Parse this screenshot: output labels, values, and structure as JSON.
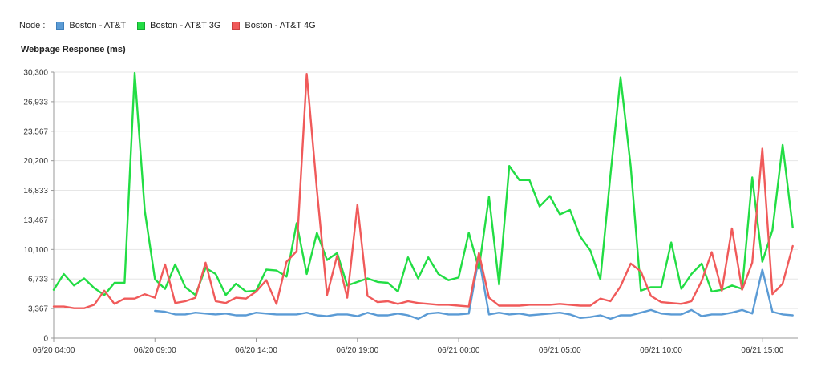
{
  "legend": {
    "label": "Node :",
    "items": [
      {
        "name": "Boston - AT&T",
        "color": "#5b9bd5"
      },
      {
        "name": "Boston - AT&T 3G",
        "color": "#22dd44"
      },
      {
        "name": "Boston - AT&T 4G",
        "color": "#f05a5a"
      }
    ]
  },
  "chart_data": {
    "type": "line",
    "title": "",
    "ylabel": "Webpage Response (ms)",
    "xlabel": "",
    "ylim": [
      0,
      30300
    ],
    "yticks": [
      "0",
      "3,367",
      "6,733",
      "10,100",
      "13,467",
      "16,833",
      "20,200",
      "23,567",
      "26,933",
      "30,300"
    ],
    "xticks": [
      {
        "label": "06/20 04:00",
        "x": 0
      },
      {
        "label": "06/20 09:00",
        "x": 5
      },
      {
        "label": "06/20 14:00",
        "x": 10
      },
      {
        "label": "06/20 19:00",
        "x": 15
      },
      {
        "label": "06/21 00:00",
        "x": 20
      },
      {
        "label": "06/21 05:00",
        "x": 25
      },
      {
        "label": "06/21 10:00",
        "x": 30
      },
      {
        "label": "06/21 15:00",
        "x": 35
      }
    ],
    "grid": "horizontal",
    "legend_position": "top-left",
    "series": [
      {
        "name": "Boston - AT&T",
        "color": "#5b9bd5",
        "points": [
          [
            5,
            3100
          ],
          [
            5.5,
            3000
          ],
          [
            6,
            2700
          ],
          [
            6.5,
            2700
          ],
          [
            7,
            2900
          ],
          [
            7.5,
            2800
          ],
          [
            8,
            2700
          ],
          [
            8.5,
            2800
          ],
          [
            9,
            2600
          ],
          [
            9.5,
            2600
          ],
          [
            10,
            2900
          ],
          [
            10.5,
            2800
          ],
          [
            11,
            2700
          ],
          [
            11.5,
            2700
          ],
          [
            12,
            2700
          ],
          [
            12.5,
            2900
          ],
          [
            13,
            2600
          ],
          [
            13.5,
            2500
          ],
          [
            14,
            2700
          ],
          [
            14.5,
            2700
          ],
          [
            15,
            2500
          ],
          [
            15.5,
            2900
          ],
          [
            16,
            2600
          ],
          [
            16.5,
            2600
          ],
          [
            17,
            2800
          ],
          [
            17.5,
            2600
          ],
          [
            18,
            2200
          ],
          [
            18.5,
            2800
          ],
          [
            19,
            2900
          ],
          [
            19.5,
            2700
          ],
          [
            20,
            2700
          ],
          [
            20.5,
            2800
          ],
          [
            21,
            9200
          ],
          [
            21.5,
            2700
          ],
          [
            22,
            2900
          ],
          [
            22.5,
            2700
          ],
          [
            23,
            2800
          ],
          [
            23.5,
            2600
          ],
          [
            24,
            2700
          ],
          [
            24.5,
            2800
          ],
          [
            25,
            2900
          ],
          [
            25.5,
            2700
          ],
          [
            26,
            2300
          ],
          [
            26.5,
            2400
          ],
          [
            27,
            2600
          ],
          [
            27.5,
            2200
          ],
          [
            28,
            2600
          ],
          [
            28.5,
            2600
          ],
          [
            29,
            2900
          ],
          [
            29.5,
            3200
          ],
          [
            30,
            2800
          ],
          [
            30.5,
            2700
          ],
          [
            31,
            2700
          ],
          [
            31.5,
            3200
          ],
          [
            32,
            2500
          ],
          [
            32.5,
            2700
          ],
          [
            33,
            2700
          ],
          [
            33.5,
            2900
          ],
          [
            34,
            3200
          ],
          [
            34.5,
            2800
          ],
          [
            35,
            7800
          ],
          [
            35.5,
            3000
          ],
          [
            36,
            2700
          ],
          [
            36.5,
            2600
          ]
        ]
      },
      {
        "name": "Boston - AT&T 3G",
        "color": "#22dd44",
        "points": [
          [
            0,
            5500
          ],
          [
            0.5,
            7300
          ],
          [
            1,
            6000
          ],
          [
            1.5,
            6800
          ],
          [
            2,
            5700
          ],
          [
            2.5,
            4900
          ],
          [
            3,
            6300
          ],
          [
            3.5,
            6300
          ],
          [
            4,
            30200
          ],
          [
            4.5,
            14500
          ],
          [
            5,
            6700
          ],
          [
            5.5,
            5600
          ],
          [
            6,
            8400
          ],
          [
            6.5,
            5800
          ],
          [
            7,
            4900
          ],
          [
            7.5,
            8000
          ],
          [
            8,
            7300
          ],
          [
            8.5,
            4900
          ],
          [
            9,
            6200
          ],
          [
            9.5,
            5300
          ],
          [
            10,
            5400
          ],
          [
            10.5,
            7800
          ],
          [
            11,
            7700
          ],
          [
            11.5,
            7000
          ],
          [
            12,
            13100
          ],
          [
            12.5,
            7300
          ],
          [
            13,
            12000
          ],
          [
            13.5,
            8900
          ],
          [
            14,
            9700
          ],
          [
            14.5,
            6000
          ],
          [
            15,
            6400
          ],
          [
            15.5,
            6800
          ],
          [
            16,
            6400
          ],
          [
            16.5,
            6300
          ],
          [
            17,
            5300
          ],
          [
            17.5,
            9200
          ],
          [
            18,
            6800
          ],
          [
            18.5,
            9200
          ],
          [
            19,
            7300
          ],
          [
            19.5,
            6600
          ],
          [
            20,
            6900
          ],
          [
            20.5,
            12000
          ],
          [
            21,
            7900
          ],
          [
            21.5,
            16100
          ],
          [
            22,
            6100
          ],
          [
            22.5,
            19600
          ],
          [
            23,
            18000
          ],
          [
            23.5,
            18000
          ],
          [
            24,
            15000
          ],
          [
            24.5,
            16200
          ],
          [
            25,
            14100
          ],
          [
            25.5,
            14600
          ],
          [
            26,
            11600
          ],
          [
            26.5,
            10000
          ],
          [
            27,
            6700
          ],
          [
            27.5,
            18600
          ],
          [
            28,
            29700
          ],
          [
            28.5,
            19500
          ],
          [
            29,
            5400
          ],
          [
            29.5,
            5800
          ],
          [
            30,
            5800
          ],
          [
            30.5,
            10900
          ],
          [
            31,
            5600
          ],
          [
            31.5,
            7300
          ],
          [
            32,
            8500
          ],
          [
            32.5,
            5300
          ],
          [
            33,
            5500
          ],
          [
            33.5,
            6000
          ],
          [
            34,
            5600
          ],
          [
            34.5,
            18300
          ],
          [
            35,
            8700
          ],
          [
            35.5,
            12300
          ],
          [
            36,
            22000
          ],
          [
            36.5,
            12600
          ]
        ]
      },
      {
        "name": "Boston - AT&T 4G",
        "color": "#f05a5a",
        "points": [
          [
            0,
            3600
          ],
          [
            0.5,
            3600
          ],
          [
            1,
            3400
          ],
          [
            1.5,
            3400
          ],
          [
            2,
            3800
          ],
          [
            2.5,
            5400
          ],
          [
            3,
            3900
          ],
          [
            3.5,
            4500
          ],
          [
            4,
            4500
          ],
          [
            4.5,
            5000
          ],
          [
            5,
            4600
          ],
          [
            5.5,
            8400
          ],
          [
            6,
            4000
          ],
          [
            6.5,
            4200
          ],
          [
            7,
            4600
          ],
          [
            7.5,
            8600
          ],
          [
            8,
            4200
          ],
          [
            8.5,
            4000
          ],
          [
            9,
            4600
          ],
          [
            9.5,
            4500
          ],
          [
            10,
            5300
          ],
          [
            10.5,
            6600
          ],
          [
            11,
            3900
          ],
          [
            11.5,
            8700
          ],
          [
            12,
            9900
          ],
          [
            12.5,
            30100
          ],
          [
            13,
            16900
          ],
          [
            13.5,
            4900
          ],
          [
            14,
            9400
          ],
          [
            14.5,
            4600
          ],
          [
            15,
            15200
          ],
          [
            15.5,
            4800
          ],
          [
            16,
            4100
          ],
          [
            16.5,
            4200
          ],
          [
            17,
            3900
          ],
          [
            17.5,
            4200
          ],
          [
            18,
            4000
          ],
          [
            18.5,
            3900
          ],
          [
            19,
            3800
          ],
          [
            19.5,
            3800
          ],
          [
            20,
            3700
          ],
          [
            20.5,
            3600
          ],
          [
            21,
            9700
          ],
          [
            21.5,
            4600
          ],
          [
            22,
            3700
          ],
          [
            22.5,
            3700
          ],
          [
            23,
            3700
          ],
          [
            23.5,
            3800
          ],
          [
            24,
            3800
          ],
          [
            24.5,
            3800
          ],
          [
            25,
            3900
          ],
          [
            25.5,
            3800
          ],
          [
            26,
            3700
          ],
          [
            26.5,
            3700
          ],
          [
            27,
            4500
          ],
          [
            27.5,
            4200
          ],
          [
            28,
            5900
          ],
          [
            28.5,
            8500
          ],
          [
            29,
            7600
          ],
          [
            29.5,
            4800
          ],
          [
            30,
            4100
          ],
          [
            30.5,
            4000
          ],
          [
            31,
            3900
          ],
          [
            31.5,
            4200
          ],
          [
            32,
            6500
          ],
          [
            32.5,
            9800
          ],
          [
            33,
            5400
          ],
          [
            33.5,
            12500
          ],
          [
            34,
            5500
          ],
          [
            34.5,
            8600
          ],
          [
            35,
            21600
          ],
          [
            35.5,
            5000
          ],
          [
            36,
            6200
          ],
          [
            36.5,
            10500
          ]
        ]
      }
    ]
  }
}
